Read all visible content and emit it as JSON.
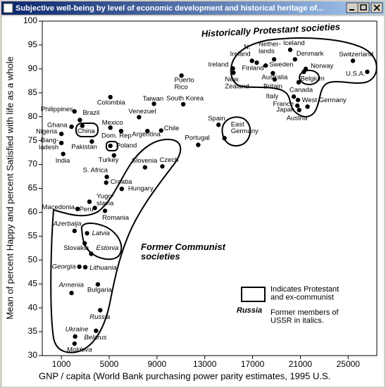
{
  "window_title": "Subjective well-being by level of economic development and historical heritage of...",
  "chart_data": {
    "type": "scatter",
    "x_label": "GNP / capita (World Bank purchasing power parity estimates, 1995 U.S.",
    "y_label": "Mean of percent Happy and percent Satisfied with life as a whole",
    "annotations": {
      "protestant": "Historically Protestant societies",
      "communist": "Former Communist\nsocieties"
    },
    "legend": {
      "box_text": "Indicates Protestant\nand ex-communist",
      "box_and": "and",
      "russia": "Russia",
      "ussr_text": "Former members of\nUSSR in italics."
    },
    "color": "#000000",
    "xlim": [
      -600,
      27400
    ],
    "ylim": [
      30,
      100
    ],
    "xticks": [
      1000,
      5000,
      9000,
      13000,
      17000,
      21000,
      25000
    ],
    "yticks": [
      30,
      35,
      40,
      45,
      50,
      55,
      60,
      65,
      70,
      75,
      80,
      85,
      90,
      95,
      100
    ],
    "grid": false,
    "point_labels": [
      "Switzerland",
      "U.S.A.",
      "Iceland",
      "Nether-\nlands",
      "Denmark",
      "Norway",
      "Sweden",
      "N.\nIreland",
      "Finland",
      "Ireland",
      "New\nZealand",
      "Australia",
      "Britain",
      "Belgium",
      "Canada",
      "Italy",
      "France",
      "Japan",
      "Austria",
      "West Germany",
      "Puerto\nRico",
      "Taiwan",
      "South Korea",
      "Colombia",
      "Philippines",
      "Brazil",
      "Ghana",
      "China",
      "Nigeria",
      "Bang-\nladesh",
      "India",
      "Pakistan",
      "Mexico",
      "Venezuel",
      "Argentina",
      "Dom. Rep",
      "Chile",
      "Spain",
      "Portugal",
      "East\nGermany",
      "Poland",
      "Turkey",
      "Slovenia",
      "Czech",
      "S. Africa",
      "Croatia",
      "Hungary",
      "Yugo-\nslavia",
      "Peru",
      "Macedonia",
      "Romania",
      "Azerbaija",
      "Latvia",
      "Slovakia",
      "Estonia",
      "Georgia",
      "Lithuania",
      "Armenia",
      "Bulgaria",
      "Russia",
      "Ukraine",
      "Belarus",
      "Moldova"
    ],
    "x": [
      25400,
      26600,
      20150,
      18800,
      20550,
      21450,
      18100,
      16950,
      17350,
      15350,
      15400,
      18700,
      18850,
      21300,
      20850,
      20450,
      20800,
      20750,
      20900,
      21600,
      11050,
      8750,
      11200,
      5100,
      2100,
      2550,
      1850,
      2750,
      1000,
      1000,
      1150,
      3550,
      5100,
      7500,
      8200,
      6000,
      9350,
      14150,
      12450,
      14650,
      5100,
      5400,
      8000,
      9450,
      4800,
      4750,
      6050,
      3350,
      3800,
      2350,
      4650,
      2100,
      3150,
      2950,
      3500,
      2500,
      3000,
      1850,
      4050,
      4250,
      2150,
      3900,
      2100
    ],
    "values": [
      91.7,
      89.4,
      94.0,
      92.0,
      92.0,
      90.0,
      90.7,
      91.7,
      91.3,
      90.1,
      89.2,
      89.1,
      87.8,
      89.4,
      87.2,
      84.2,
      83.5,
      82.3,
      81.4,
      82.1,
      88.6,
      82.7,
      82.6,
      84.1,
      81.1,
      79.3,
      77.9,
      78.1,
      76.4,
      74.5,
      72.2,
      74.8,
      77.7,
      79.9,
      77.0,
      77.0,
      77.1,
      78.3,
      74.1,
      75.5,
      73.9,
      71.9,
      69.4,
      69.6,
      67.4,
      66.2,
      64.9,
      62.2,
      60.9,
      60.7,
      60.3,
      56.1,
      55.6,
      53.5,
      51.3,
      48.6,
      48.5,
      43.1,
      44.9,
      39.5,
      34.0,
      35.2,
      32.5
    ],
    "italic_labels": [
      false,
      false,
      false,
      false,
      false,
      false,
      false,
      false,
      false,
      false,
      false,
      false,
      false,
      false,
      false,
      false,
      false,
      false,
      false,
      false,
      false,
      false,
      false,
      false,
      false,
      false,
      false,
      false,
      false,
      false,
      false,
      false,
      false,
      false,
      false,
      false,
      false,
      false,
      false,
      false,
      false,
      false,
      false,
      false,
      false,
      false,
      false,
      false,
      false,
      false,
      false,
      true,
      true,
      false,
      true,
      true,
      true,
      true,
      false,
      true,
      true,
      true,
      true
    ]
  }
}
